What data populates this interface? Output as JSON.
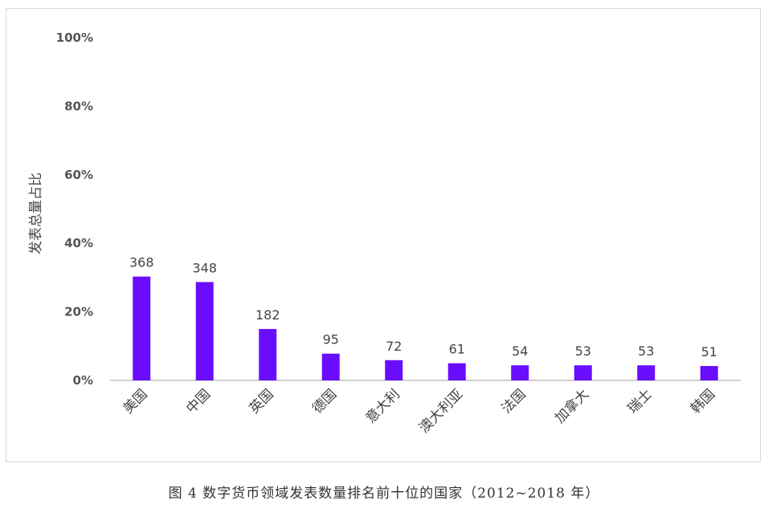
{
  "caption": "图 4 数字货币领域发表数量排名前十位的国家（2012~2018 年）",
  "chart_data": {
    "type": "bar",
    "ylabel": "发表总量占比",
    "xlabel": "",
    "ylim": [
      0,
      100
    ],
    "yticks": [
      "0%",
      "20%",
      "40%",
      "60%",
      "80%",
      "100%"
    ],
    "categories": [
      "美国",
      "中国",
      "英国",
      "德国",
      "意大利",
      "澳大利亚",
      "法国",
      "加拿大",
      "瑞士",
      "韩国"
    ],
    "values": [
      30.3,
      28.7,
      15.0,
      7.8,
      5.9,
      5.0,
      4.4,
      4.4,
      4.4,
      4.2
    ],
    "data_labels": [
      "368",
      "348",
      "182",
      "95",
      "72",
      "61",
      "54",
      "53",
      "53",
      "51"
    ],
    "bar_color": "#6a0dff",
    "axis_color": "#bfbfbf",
    "grid": false
  }
}
